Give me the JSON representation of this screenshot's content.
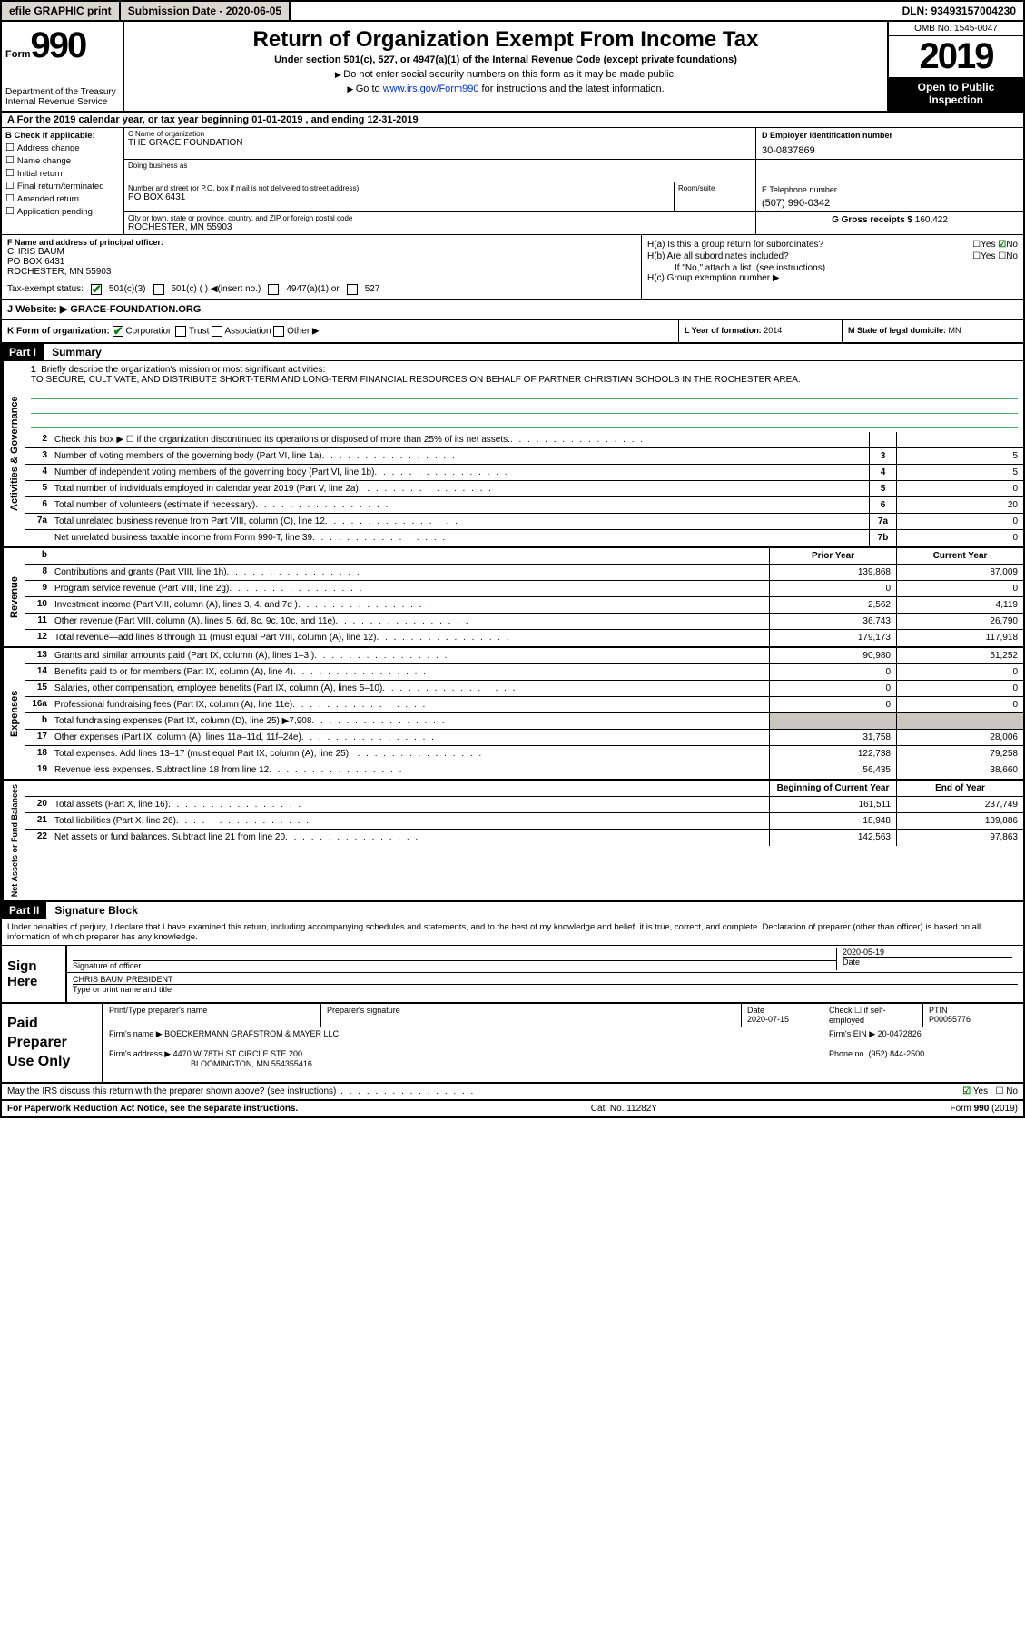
{
  "top": {
    "efile": "efile GRAPHIC print",
    "submission_label": "Submission Date - 2020-06-05",
    "dln": "DLN: 93493157004230"
  },
  "header": {
    "form_word": "Form",
    "form_num": "990",
    "dept": "Department of the Treasury\nInternal Revenue Service",
    "title": "Return of Organization Exempt From Income Tax",
    "subtitle": "Under section 501(c), 527, or 4947(a)(1) of the Internal Revenue Code (except private foundations)",
    "note1": "Do not enter social security numbers on this form as it may be made public.",
    "note2_pre": "Go to ",
    "note2_link": "www.irs.gov/Form990",
    "note2_post": " for instructions and the latest information.",
    "omb": "OMB No. 1545-0047",
    "year": "2019",
    "inspection": "Open to Public Inspection"
  },
  "period": "A   For the 2019 calendar year, or tax year beginning 01-01-2019    , and ending 12-31-2019",
  "boxB": {
    "lbl": "B Check if applicable:",
    "opts": [
      "Address change",
      "Name change",
      "Initial return",
      "Final return/terminated",
      "Amended return",
      "Application pending"
    ]
  },
  "boxC": {
    "name_lbl": "C Name of organization",
    "name": "THE GRACE FOUNDATION",
    "dba_lbl": "Doing business as",
    "addr_lbl": "Number and street (or P.O. box if mail is not delivered to street address)",
    "addr": "PO BOX 6431",
    "suite_lbl": "Room/suite",
    "city_lbl": "City or town, state or province, country, and ZIP or foreign postal code",
    "city": "ROCHESTER, MN  55903"
  },
  "boxD": {
    "lbl": "D Employer identification number",
    "val": "30-0837869"
  },
  "boxE": {
    "lbl": "E Telephone number",
    "val": "(507) 990-0342"
  },
  "boxG": {
    "lbl": "G Gross receipts $",
    "val": "160,422"
  },
  "boxF": {
    "lbl": "F  Name and address of principal officer:",
    "name": "CHRIS BAUM",
    "addr1": "PO BOX 6431",
    "addr2": "ROCHESTER, MN  55903"
  },
  "boxH": {
    "a": "H(a)  Is this a group return for subordinates?",
    "b": "H(b)  Are all subordinates included?",
    "b_note": "If \"No,\" attach a list. (see instructions)",
    "c": "H(c)  Group exemption number ▶",
    "yes": "Yes",
    "no": "No"
  },
  "taxStatus": {
    "lbl": "Tax-exempt status:",
    "o1": "501(c)(3)",
    "o2": "501(c) (  ) ◀(insert no.)",
    "o3": "4947(a)(1) or",
    "o4": "527"
  },
  "boxJ": {
    "lbl": "J   Website: ▶",
    "val": "GRACE-FOUNDATION.ORG"
  },
  "boxK": {
    "lbl": "K Form of organization:",
    "o1": "Corporation",
    "o2": "Trust",
    "o3": "Association",
    "o4": "Other ▶"
  },
  "boxL": {
    "lbl": "L Year of formation:",
    "val": "2014"
  },
  "boxM": {
    "lbl": "M State of legal domicile:",
    "val": "MN"
  },
  "part1": {
    "hdr": "Part I",
    "title": "Summary"
  },
  "mission": {
    "lbl": "Briefly describe the organization's mission or most significant activities:",
    "text": "TO SECURE, CULTIVATE, AND DISTRIBUTE SHORT-TERM AND LONG-TERM FINANCIAL RESOURCES ON BEHALF OF PARTNER CHRISTIAN SCHOOLS IN THE ROCHESTER AREA."
  },
  "lines_ag": [
    {
      "n": "2",
      "t": "Check this box ▶ ☐  if the organization discontinued its operations or disposed of more than 25% of its net assets.",
      "box": "",
      "v": ""
    },
    {
      "n": "3",
      "t": "Number of voting members of the governing body (Part VI, line 1a)",
      "box": "3",
      "v": "5"
    },
    {
      "n": "4",
      "t": "Number of independent voting members of the governing body (Part VI, line 1b)",
      "box": "4",
      "v": "5"
    },
    {
      "n": "5",
      "t": "Total number of individuals employed in calendar year 2019 (Part V, line 2a)",
      "box": "5",
      "v": "0"
    },
    {
      "n": "6",
      "t": "Total number of volunteers (estimate if necessary)",
      "box": "6",
      "v": "20"
    },
    {
      "n": "7a",
      "t": "Total unrelated business revenue from Part VIII, column (C), line 12",
      "box": "7a",
      "v": "0"
    },
    {
      "n": "",
      "t": "Net unrelated business taxable income from Form 990-T, line 39",
      "box": "7b",
      "v": "0"
    }
  ],
  "col_headers": {
    "prior": "Prior Year",
    "current": "Current Year"
  },
  "lines_rev": [
    {
      "n": "8",
      "t": "Contributions and grants (Part VIII, line 1h)",
      "p": "139,868",
      "c": "87,009"
    },
    {
      "n": "9",
      "t": "Program service revenue (Part VIII, line 2g)",
      "p": "0",
      "c": "0"
    },
    {
      "n": "10",
      "t": "Investment income (Part VIII, column (A), lines 3, 4, and 7d )",
      "p": "2,562",
      "c": "4,119"
    },
    {
      "n": "11",
      "t": "Other revenue (Part VIII, column (A), lines 5, 6d, 8c, 9c, 10c, and 11e)",
      "p": "36,743",
      "c": "26,790"
    },
    {
      "n": "12",
      "t": "Total revenue—add lines 8 through 11 (must equal Part VIII, column (A), line 12)",
      "p": "179,173",
      "c": "117,918"
    }
  ],
  "lines_exp": [
    {
      "n": "13",
      "t": "Grants and similar amounts paid (Part IX, column (A), lines 1–3 )",
      "p": "90,980",
      "c": "51,252"
    },
    {
      "n": "14",
      "t": "Benefits paid to or for members (Part IX, column (A), line 4)",
      "p": "0",
      "c": "0"
    },
    {
      "n": "15",
      "t": "Salaries, other compensation, employee benefits (Part IX, column (A), lines 5–10)",
      "p": "0",
      "c": "0"
    },
    {
      "n": "16a",
      "t": "Professional fundraising fees (Part IX, column (A), line 11e)",
      "p": "0",
      "c": "0"
    },
    {
      "n": "b",
      "t": "Total fundraising expenses (Part IX, column (D), line 25) ▶7,908",
      "p": "",
      "c": "",
      "shaded": true
    },
    {
      "n": "17",
      "t": "Other expenses (Part IX, column (A), lines 11a–11d, 11f–24e)",
      "p": "31,758",
      "c": "28,006"
    },
    {
      "n": "18",
      "t": "Total expenses. Add lines 13–17 (must equal Part IX, column (A), line 25)",
      "p": "122,738",
      "c": "79,258"
    },
    {
      "n": "19",
      "t": "Revenue less expenses. Subtract line 18 from line 12",
      "p": "56,435",
      "c": "38,660"
    }
  ],
  "col_headers2": {
    "begin": "Beginning of Current Year",
    "end": "End of Year"
  },
  "lines_net": [
    {
      "n": "20",
      "t": "Total assets (Part X, line 16)",
      "p": "161,511",
      "c": "237,749"
    },
    {
      "n": "21",
      "t": "Total liabilities (Part X, line 26)",
      "p": "18,948",
      "c": "139,886"
    },
    {
      "n": "22",
      "t": "Net assets or fund balances. Subtract line 21 from line 20",
      "p": "142,563",
      "c": "97,863"
    }
  ],
  "side_labels": {
    "ag": "Activities & Governance",
    "rev": "Revenue",
    "exp": "Expenses",
    "net": "Net Assets or Fund Balances"
  },
  "part2": {
    "hdr": "Part II",
    "title": "Signature Block"
  },
  "penalty": "Under penalties of perjury, I declare that I have examined this return, including accompanying schedules and statements, and to the best of my knowledge and belief, it is true, correct, and complete. Declaration of preparer (other than officer) is based on all information of which preparer has any knowledge.",
  "sign": {
    "here": "Sign Here",
    "sig_lbl": "Signature of officer",
    "date_lbl": "Date",
    "date": "2020-05-19",
    "name": "CHRIS BAUM  PRESIDENT",
    "name_lbl": "Type or print name and title"
  },
  "paid": {
    "lbl": "Paid Preparer Use Only",
    "prep_name_lbl": "Print/Type preparer's name",
    "prep_sig_lbl": "Preparer's signature",
    "date_lbl": "Date",
    "date": "2020-07-15",
    "check_lbl": "Check ☐ if self-employed",
    "ptin_lbl": "PTIN",
    "ptin": "P00055776",
    "firm_lbl": "Firm's name   ▶",
    "firm": "BOECKERMANN GRAFSTROM & MAYER LLC",
    "ein_lbl": "Firm's EIN ▶",
    "ein": "20-0472826",
    "addr_lbl": "Firm's address ▶",
    "addr1": "4470 W 78TH ST CIRCLE STE 200",
    "addr2": "BLOOMINGTON, MN  554355416",
    "phone_lbl": "Phone no.",
    "phone": "(952) 844-2500"
  },
  "discuss": {
    "q": "May the IRS discuss this return with the preparer shown above? (see instructions)",
    "yes": "Yes",
    "no": "No"
  },
  "footer": {
    "left": "For Paperwork Reduction Act Notice, see the separate instructions.",
    "mid": "Cat. No. 11282Y",
    "right": "Form 990 (2019)"
  }
}
